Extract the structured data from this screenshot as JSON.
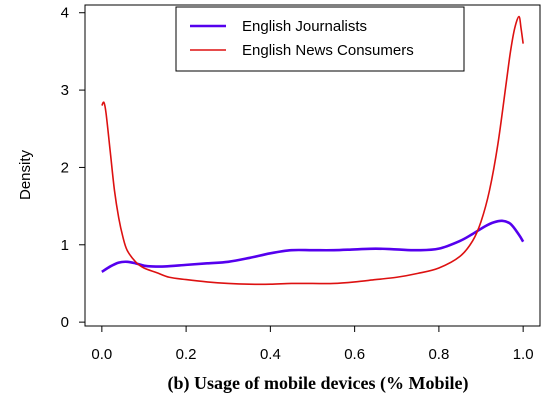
{
  "chart_data": {
    "type": "line",
    "title": "(b) Usage of mobile devices (% Mobile)",
    "xlabel": "",
    "ylabel": "Density",
    "xlim": [
      -0.04,
      1.04
    ],
    "ylim": [
      -0.05,
      4.1
    ],
    "x_ticks": [
      "0.0",
      "0.2",
      "0.4",
      "0.6",
      "0.8",
      "1.0"
    ],
    "y_ticks": [
      "0",
      "1",
      "2",
      "3",
      "4"
    ],
    "grid": false,
    "legend_position": "top-center",
    "series": [
      {
        "name": "English Journalists",
        "color": "#5500ee",
        "x": [
          0.0,
          0.02,
          0.04,
          0.06,
          0.08,
          0.1,
          0.12,
          0.15,
          0.2,
          0.25,
          0.3,
          0.35,
          0.4,
          0.45,
          0.5,
          0.55,
          0.6,
          0.65,
          0.7,
          0.75,
          0.8,
          0.85,
          0.88,
          0.91,
          0.93,
          0.95,
          0.97,
          0.99,
          1.0
        ],
        "y": [
          0.65,
          0.72,
          0.77,
          0.78,
          0.76,
          0.73,
          0.72,
          0.72,
          0.74,
          0.76,
          0.78,
          0.83,
          0.89,
          0.93,
          0.93,
          0.93,
          0.94,
          0.95,
          0.94,
          0.93,
          0.95,
          1.05,
          1.14,
          1.24,
          1.29,
          1.31,
          1.27,
          1.13,
          1.04
        ]
      },
      {
        "name": "English News Consumers",
        "color": "#dd1111",
        "x": [
          0.0,
          0.005,
          0.01,
          0.02,
          0.03,
          0.04,
          0.05,
          0.06,
          0.08,
          0.1,
          0.13,
          0.16,
          0.2,
          0.25,
          0.3,
          0.35,
          0.4,
          0.45,
          0.5,
          0.55,
          0.6,
          0.65,
          0.7,
          0.75,
          0.8,
          0.85,
          0.88,
          0.9,
          0.92,
          0.94,
          0.96,
          0.97,
          0.98,
          0.99,
          0.995,
          1.0
        ],
        "y": [
          2.8,
          2.84,
          2.7,
          2.2,
          1.7,
          1.35,
          1.1,
          0.93,
          0.78,
          0.7,
          0.64,
          0.58,
          0.55,
          0.52,
          0.5,
          0.49,
          0.49,
          0.5,
          0.5,
          0.5,
          0.52,
          0.55,
          0.58,
          0.63,
          0.7,
          0.85,
          1.05,
          1.3,
          1.7,
          2.3,
          3.1,
          3.5,
          3.8,
          3.95,
          3.8,
          3.6
        ]
      }
    ]
  }
}
